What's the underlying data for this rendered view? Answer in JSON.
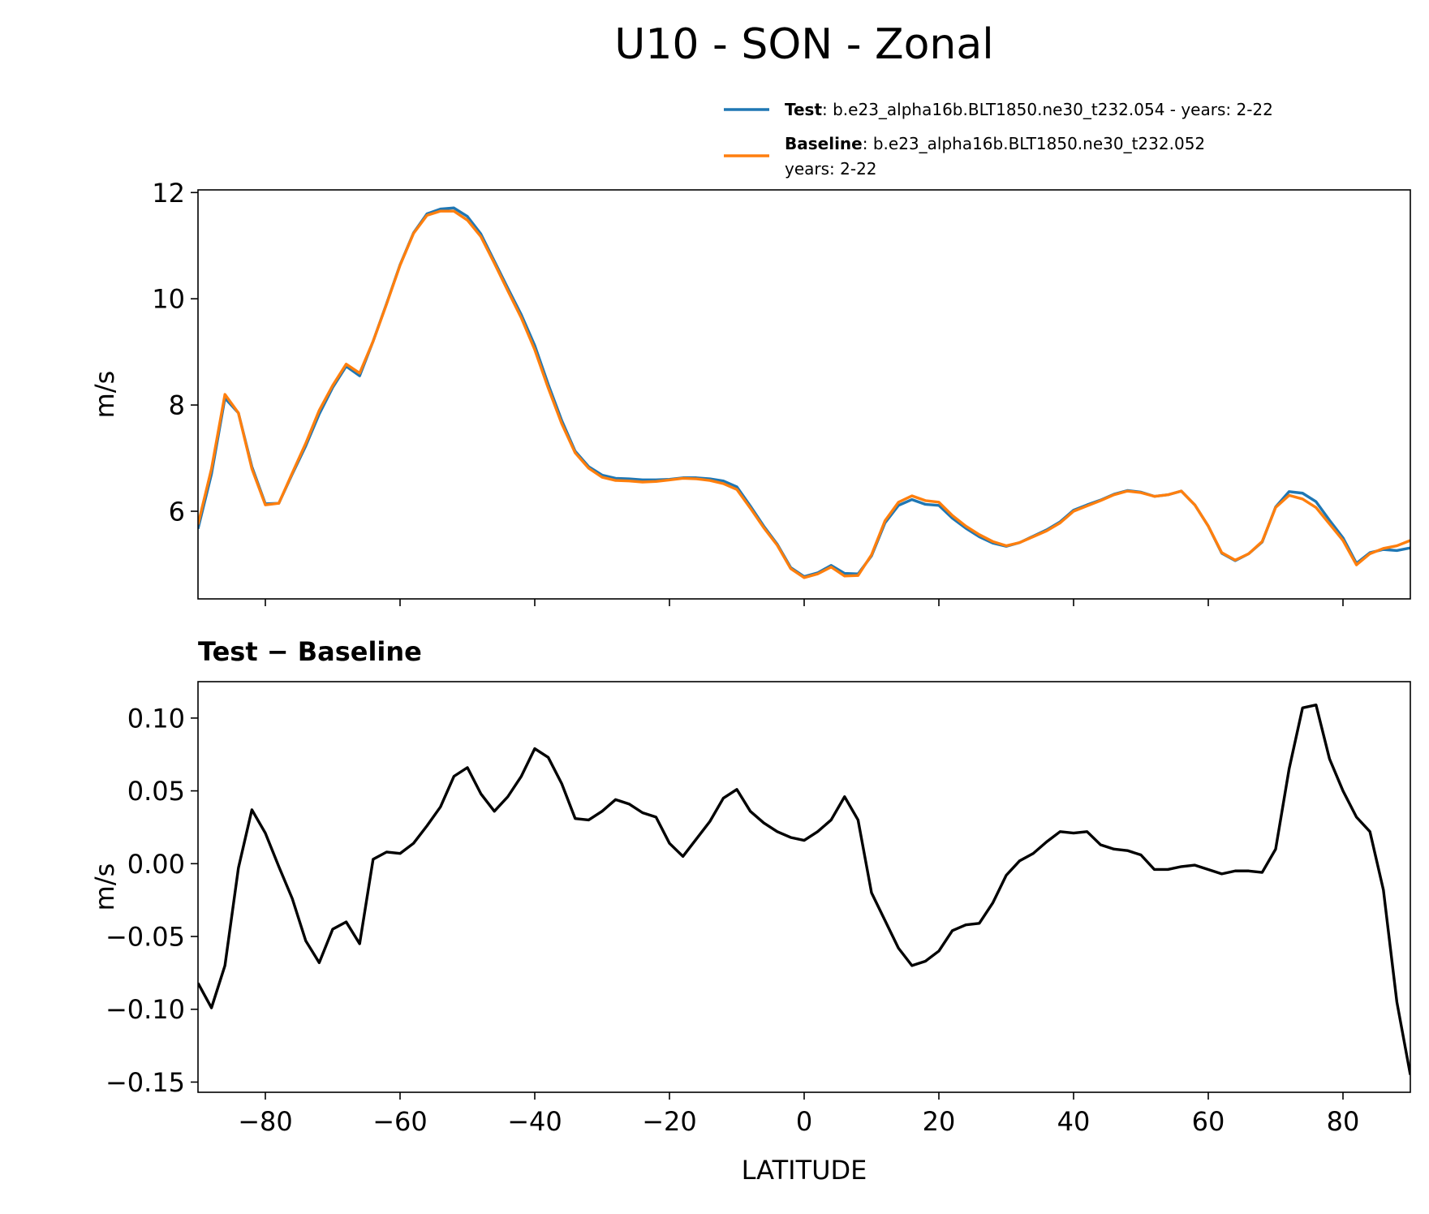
{
  "title": "U10 - SON - Zonal",
  "chart_data": [
    {
      "type": "line",
      "ylabel": "m/s",
      "x": [
        -90,
        -88,
        -86,
        -84,
        -82,
        -80,
        -78,
        -76,
        -74,
        -72,
        -70,
        -68,
        -66,
        -64,
        -62,
        -60,
        -58,
        -56,
        -54,
        -52,
        -50,
        -48,
        -46,
        -44,
        -42,
        -40,
        -38,
        -36,
        -34,
        -32,
        -30,
        -28,
        -26,
        -24,
        -22,
        -20,
        -18,
        -16,
        -14,
        -12,
        -10,
        -8,
        -6,
        -4,
        -2,
        0,
        2,
        4,
        6,
        8,
        10,
        12,
        14,
        16,
        18,
        20,
        22,
        24,
        26,
        28,
        30,
        32,
        34,
        36,
        38,
        40,
        42,
        44,
        46,
        48,
        50,
        52,
        54,
        56,
        58,
        60,
        62,
        64,
        66,
        68,
        70,
        72,
        74,
        76,
        78,
        80,
        82,
        84,
        86,
        88,
        90
      ],
      "series": [
        {
          "name": "Test",
          "description": [
            ": b.e23_alpha16b.BLT1850.ne30_t232.054 - years: 2-22"
          ],
          "color": "#1f77b4",
          "values": [
            5.67,
            6.7,
            8.13,
            7.85,
            6.84,
            6.14,
            6.15,
            6.7,
            7.23,
            7.83,
            8.33,
            8.73,
            8.55,
            9.2,
            9.91,
            10.64,
            11.24,
            11.6,
            11.69,
            11.71,
            11.55,
            11.22,
            10.71,
            10.2,
            9.7,
            9.12,
            8.39,
            7.71,
            7.13,
            6.84,
            6.68,
            6.62,
            6.61,
            6.59,
            6.59,
            6.6,
            6.63,
            6.63,
            6.61,
            6.57,
            6.46,
            6.1,
            5.72,
            5.38,
            4.94,
            4.77,
            4.84,
            4.98,
            4.83,
            4.82,
            5.16,
            5.78,
            6.11,
            6.22,
            6.13,
            6.11,
            5.87,
            5.68,
            5.52,
            5.4,
            5.34,
            5.41,
            5.53,
            5.65,
            5.8,
            6.02,
            6.12,
            6.21,
            6.32,
            6.39,
            6.36,
            6.28,
            6.31,
            6.38,
            6.12,
            5.72,
            5.21,
            5.07,
            5.2,
            5.42,
            6.08,
            6.37,
            6.34,
            6.18,
            5.83,
            5.5,
            5.02,
            5.22,
            5.28,
            5.26,
            5.31
          ]
        },
        {
          "name": "Baseline",
          "description": [
            ": b.e23_alpha16b.BLT1850.ne30_t232.052",
            "years: 2-22"
          ],
          "color": "#ff7f0e",
          "values": [
            5.75,
            6.8,
            8.2,
            7.85,
            6.8,
            6.12,
            6.15,
            6.72,
            7.28,
            7.9,
            8.37,
            8.77,
            8.6,
            9.2,
            9.9,
            10.63,
            11.23,
            11.57,
            11.65,
            11.65,
            11.48,
            11.17,
            10.67,
            10.15,
            9.64,
            9.04,
            8.32,
            7.65,
            7.1,
            6.81,
            6.64,
            6.58,
            6.57,
            6.55,
            6.56,
            6.59,
            6.62,
            6.61,
            6.58,
            6.52,
            6.41,
            6.06,
            5.69,
            5.36,
            4.92,
            4.75,
            4.82,
            4.95,
            4.78,
            4.79,
            5.18,
            5.82,
            6.17,
            6.29,
            6.2,
            6.17,
            5.92,
            5.72,
            5.56,
            5.43,
            5.35,
            5.41,
            5.52,
            5.63,
            5.78,
            6.0,
            6.1,
            6.2,
            6.31,
            6.38,
            6.35,
            6.28,
            6.31,
            6.38,
            6.12,
            5.72,
            5.22,
            5.08,
            5.2,
            5.43,
            6.07,
            6.3,
            6.23,
            6.07,
            5.76,
            5.45,
            4.99,
            5.2,
            5.3,
            5.35,
            5.45
          ]
        }
      ],
      "xlim": [
        -90,
        90
      ],
      "xticks": [
        {
          "value": -80,
          "label": "−80"
        },
        {
          "value": -60,
          "label": "−60"
        },
        {
          "value": -40,
          "label": "−40"
        },
        {
          "value": -20,
          "label": "−20"
        },
        0,
        20,
        40,
        60,
        80
      ],
      "show_xtick_labels": false,
      "ylim": [
        4.35,
        12.05
      ],
      "yticks": [
        6,
        8,
        10,
        12
      ],
      "legend": "above-right"
    },
    {
      "type": "line",
      "title": "Test − Baseline",
      "ylabel": "m/s",
      "xlabel": "LATITUDE",
      "x": [
        -90,
        -88,
        -86,
        -84,
        -82,
        -80,
        -78,
        -76,
        -74,
        -72,
        -70,
        -68,
        -66,
        -64,
        -62,
        -60,
        -58,
        -56,
        -54,
        -52,
        -50,
        -48,
        -46,
        -44,
        -42,
        -40,
        -38,
        -36,
        -34,
        -32,
        -30,
        -28,
        -26,
        -24,
        -22,
        -20,
        -18,
        -16,
        -14,
        -12,
        -10,
        -8,
        -6,
        -4,
        -2,
        0,
        2,
        4,
        6,
        8,
        10,
        12,
        14,
        16,
        18,
        20,
        22,
        24,
        26,
        28,
        30,
        32,
        34,
        36,
        38,
        40,
        42,
        44,
        46,
        48,
        50,
        52,
        54,
        56,
        58,
        60,
        62,
        64,
        66,
        68,
        70,
        72,
        74,
        76,
        78,
        80,
        82,
        84,
        86,
        88,
        90
      ],
      "color": "#000000",
      "values": [
        -0.082,
        -0.099,
        -0.07,
        -0.003,
        0.037,
        0.021,
        -0.002,
        -0.024,
        -0.053,
        -0.068,
        -0.045,
        -0.04,
        -0.055,
        0.003,
        0.008,
        0.007,
        0.014,
        0.026,
        0.039,
        0.06,
        0.066,
        0.048,
        0.036,
        0.046,
        0.06,
        0.079,
        0.073,
        0.055,
        0.031,
        0.03,
        0.036,
        0.044,
        0.041,
        0.035,
        0.032,
        0.014,
        0.005,
        0.017,
        0.029,
        0.045,
        0.051,
        0.036,
        0.028,
        0.022,
        0.018,
        0.016,
        0.022,
        0.03,
        0.046,
        0.03,
        -0.02,
        -0.039,
        -0.058,
        -0.07,
        -0.067,
        -0.06,
        -0.046,
        -0.042,
        -0.041,
        -0.027,
        -0.008,
        0.002,
        0.007,
        0.015,
        0.022,
        0.021,
        0.022,
        0.013,
        0.01,
        0.009,
        0.006,
        -0.004,
        -0.004,
        -0.002,
        -0.001,
        -0.004,
        -0.007,
        -0.005,
        -0.005,
        -0.006,
        0.01,
        0.065,
        0.107,
        0.109,
        0.072,
        0.05,
        0.032,
        0.022,
        -0.018,
        -0.095,
        -0.145
      ],
      "xlim": [
        -90,
        90
      ],
      "xticks": [
        {
          "value": -80,
          "label": "−80"
        },
        {
          "value": -60,
          "label": "−60"
        },
        {
          "value": -40,
          "label": "−40"
        },
        {
          "value": -20,
          "label": "−20"
        },
        0,
        20,
        40,
        60,
        80
      ],
      "show_xtick_labels": true,
      "ylim": [
        -0.157,
        0.125
      ],
      "yticks": [
        {
          "value": 0.1,
          "label": "0.10"
        },
        {
          "value": 0.05,
          "label": "0.05"
        },
        {
          "value": 0,
          "label": "0.00"
        },
        {
          "value": -0.05,
          "label": "−0.05"
        },
        {
          "value": -0.1,
          "label": "−0.10"
        },
        {
          "value": -0.15,
          "label": "−0.15"
        }
      ]
    }
  ]
}
